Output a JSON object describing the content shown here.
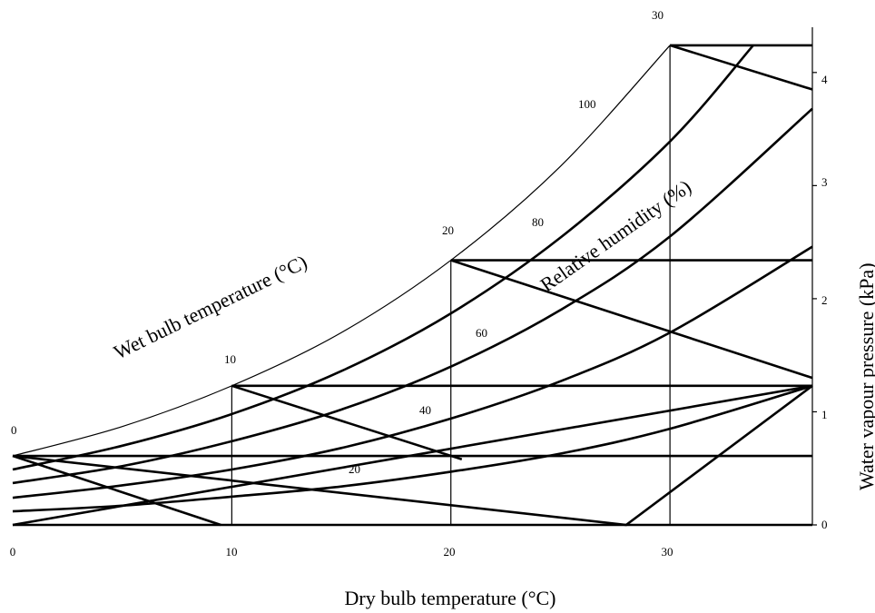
{
  "chart_data": {
    "type": "line",
    "title": "",
    "xlabel": "Dry bulb temperature (°C)",
    "ylabel": "Water vapour pressure (kPa)",
    "xlim": [
      0,
      36.5
    ],
    "ylim": [
      0,
      4.4
    ],
    "x_ticks": [
      "0",
      "10",
      "20",
      "30"
    ],
    "y_ticks": [
      "0",
      "1",
      "2",
      "3",
      "4"
    ],
    "wet_bulb_axis_label": "Wet bulb temperature (°C)",
    "wet_bulb_ticks": [
      "0",
      "10",
      "20",
      "30"
    ],
    "rh_axis_label": "Relative humidity (%)",
    "rh_labels": [
      "100",
      "80",
      "60",
      "40",
      "20"
    ],
    "relative_humidity_curves": [
      {
        "rh": 100,
        "x": [
          0,
          5,
          10,
          15,
          20,
          25,
          30
        ],
        "y": [
          0.61,
          0.87,
          1.23,
          1.7,
          2.34,
          3.17,
          4.24
        ]
      },
      {
        "rh": 80,
        "x": [
          0,
          5,
          10,
          15,
          20,
          25,
          30,
          33.8
        ],
        "y": [
          0.49,
          0.7,
          0.98,
          1.36,
          1.87,
          2.54,
          3.39,
          4.24
        ]
      },
      {
        "rh": 60,
        "x": [
          0,
          5,
          10,
          15,
          20,
          25,
          30,
          36.5
        ],
        "y": [
          0.37,
          0.52,
          0.74,
          1.02,
          1.4,
          1.9,
          2.55,
          3.68
        ]
      },
      {
        "rh": 40,
        "x": [
          0,
          5,
          10,
          15,
          20,
          25,
          30,
          36.5
        ],
        "y": [
          0.24,
          0.35,
          0.49,
          0.68,
          0.94,
          1.27,
          1.7,
          2.46
        ]
      },
      {
        "rh": 20,
        "x": [
          0,
          5,
          10,
          15,
          20,
          25,
          30,
          36.5
        ],
        "y": [
          0.12,
          0.17,
          0.25,
          0.34,
          0.47,
          0.63,
          0.85,
          1.23
        ]
      }
    ],
    "wet_bulb_lines": [
      {
        "t": 0,
        "x": [
          0,
          9.5
        ],
        "y": [
          0.61,
          0
        ]
      },
      {
        "t": 10,
        "x": [
          10,
          20.5
        ],
        "y": [
          1.23,
          0.58
        ]
      },
      {
        "t": 20,
        "x": [
          20,
          36.5
        ],
        "y": [
          2.34,
          1.3
        ]
      },
      {
        "t": 30,
        "x": [
          30,
          36.5
        ],
        "y": [
          4.24,
          3.85
        ]
      }
    ],
    "vapour_pressure_lines": [
      {
        "t": 0,
        "x": [
          0,
          36.5
        ],
        "y": [
          0.61,
          0.61
        ]
      },
      {
        "t": 10,
        "x": [
          10,
          36.5
        ],
        "y": [
          1.23,
          1.23
        ]
      },
      {
        "t": 20,
        "x": [
          20,
          36.5
        ],
        "y": [
          2.34,
          2.34
        ]
      },
      {
        "t": 30,
        "x": [
          30,
          36.5
        ],
        "y": [
          4.24,
          4.24
        ]
      }
    ],
    "dry_bulb_verticals": [
      {
        "t": 10,
        "x": [
          10,
          10
        ],
        "y": [
          0,
          1.23
        ]
      },
      {
        "t": 20,
        "x": [
          20,
          20
        ],
        "y": [
          0,
          2.34
        ]
      },
      {
        "t": 30,
        "x": [
          30,
          30
        ],
        "y": [
          0,
          4.24
        ]
      }
    ],
    "heat_line": {
      "x": [
        0,
        28,
        36.5
      ],
      "y": [
        0.61,
        0,
        1.23
      ]
    },
    "heat_line_2": {
      "x": [
        0,
        36.5
      ],
      "y": [
        0,
        1.23
      ]
    },
    "grid": false,
    "legend": "none"
  }
}
